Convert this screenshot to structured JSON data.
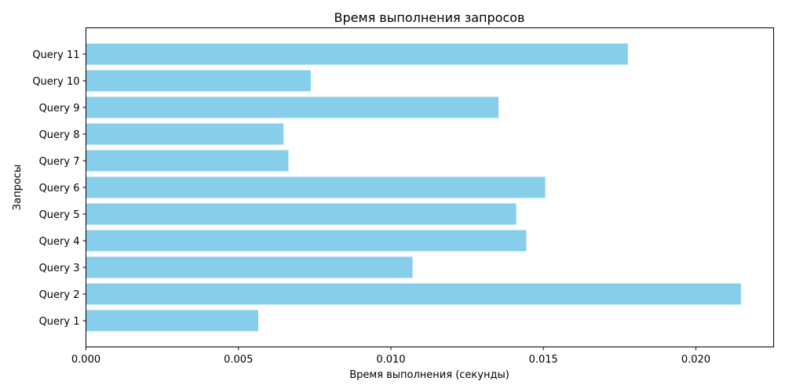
{
  "chart_data": {
    "type": "bar",
    "orientation": "horizontal",
    "title": "Время выполнения запросов",
    "xlabel": "Время выполнения (секунды)",
    "ylabel": "Запросы",
    "categories": [
      "Query 1",
      "Query 2",
      "Query 3",
      "Query 4",
      "Query 5",
      "Query 6",
      "Query 7",
      "Query 8",
      "Query 9",
      "Query 10",
      "Query 11"
    ],
    "values": [
      0.00565,
      0.02148,
      0.01071,
      0.01444,
      0.01411,
      0.01506,
      0.00664,
      0.00648,
      0.01353,
      0.00737,
      0.01777
    ],
    "xlim": [
      0,
      0.02255
    ],
    "xticks": [
      0,
      0.005,
      0.01,
      0.015,
      0.02
    ],
    "xtick_labels": [
      "0.000",
      "0.005",
      "0.010",
      "0.015",
      "0.020"
    ],
    "bar_color": "#87ceeb",
    "grid": false,
    "legend": "none"
  }
}
